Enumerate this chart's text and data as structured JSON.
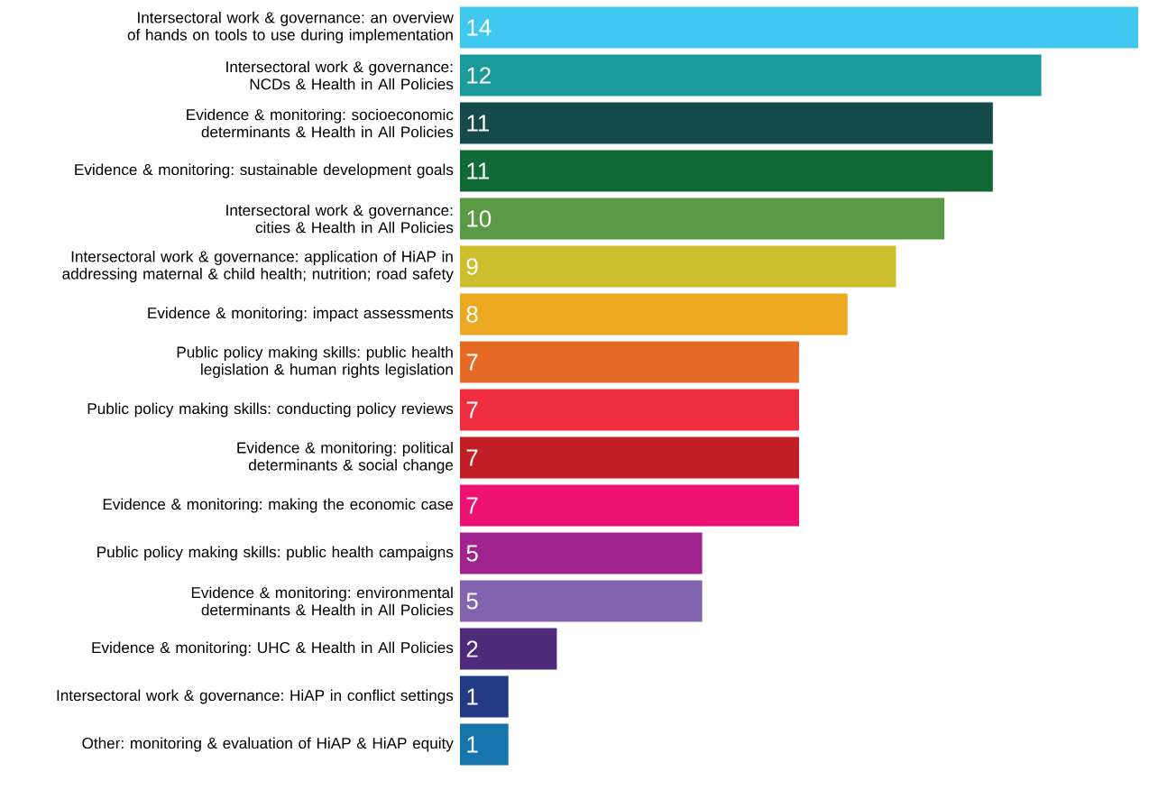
{
  "chart_data": {
    "type": "bar",
    "orientation": "horizontal",
    "data_labels": true,
    "categories": [
      "Intersectoral work & governance: an overview of hands on tools to use during implementation",
      "Intersectoral work & governance: NCDs & Health in All Policies",
      "Evidence & monitoring: socioeconomic determinants & Health in All Policies",
      "Evidence & monitoring: sustainable development goals",
      "Intersectoral work & governance: cities & Health in All Policies",
      "Intersectoral work & governance: application of HiAP in addressing maternal & child health; nutrition; road safety",
      "Evidence & monitoring: impact assessments",
      "Public policy making skills: public health legislation & human rights legislation",
      "Public policy making skills: conducting policy reviews",
      "Evidence & monitoring: political determinants & social change",
      "Evidence & monitoring: making the economic case",
      "Public policy making skills: public health campaigns",
      "Evidence & monitoring: environmental determinants & Health in All Policies",
      "Evidence & monitoring: UHC & Health in All Policies",
      "Intersectoral work & governance: HiAP in conflict settings",
      "Other: monitoring & evaluation of HiAP & HiAP equity"
    ],
    "values": [
      14,
      12,
      11,
      11,
      10,
      9,
      8,
      7,
      7,
      7,
      7,
      5,
      5,
      2,
      1,
      1
    ],
    "colors": [
      "#40c8f0",
      "#1a9a9a",
      "#154a4a",
      "#116a36",
      "#5a9a44",
      "#ccbe2c",
      "#eba820",
      "#e66a26",
      "#ee2e40",
      "#c11f26",
      "#ed1172",
      "#a0248e",
      "#8164ad",
      "#51297a",
      "#233a85",
      "#1775ad"
    ]
  }
}
